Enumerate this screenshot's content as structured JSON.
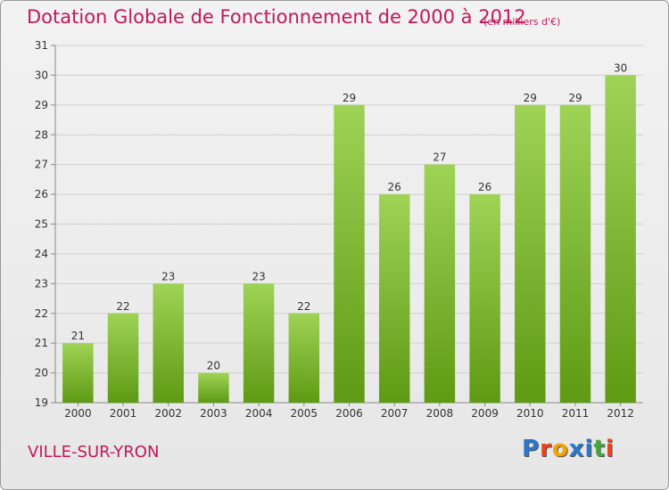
{
  "title": "Dotation Globale de Fonctionnement de 2000 à 2012",
  "unit": "(en milliers d'€)",
  "commune": "VILLE-SUR-YRON",
  "logo": {
    "letters": [
      "P",
      "r",
      "o",
      "x",
      "i",
      "t",
      "i"
    ],
    "colors": [
      "#2a77c9",
      "#e8441d",
      "#f2a400",
      "#2a77c9",
      "#2a77c9",
      "#43a73f",
      "#e8441d"
    ]
  },
  "colors": {
    "accent": "#c2185b",
    "bar_light": "#9fd356",
    "bar_dark": "#5e9a14"
  },
  "chart_data": {
    "type": "bar",
    "categories": [
      "2000",
      "2001",
      "2002",
      "2003",
      "2004",
      "2005",
      "2006",
      "2007",
      "2008",
      "2009",
      "2010",
      "2011",
      "2012"
    ],
    "values": [
      21,
      22,
      23,
      20,
      23,
      22,
      29,
      26,
      27,
      26,
      29,
      29,
      30
    ],
    "ylim": [
      19,
      31
    ],
    "yticks": [
      19,
      20,
      21,
      22,
      23,
      24,
      25,
      26,
      27,
      28,
      29,
      30,
      31
    ],
    "grid": true,
    "data_labels": true
  }
}
